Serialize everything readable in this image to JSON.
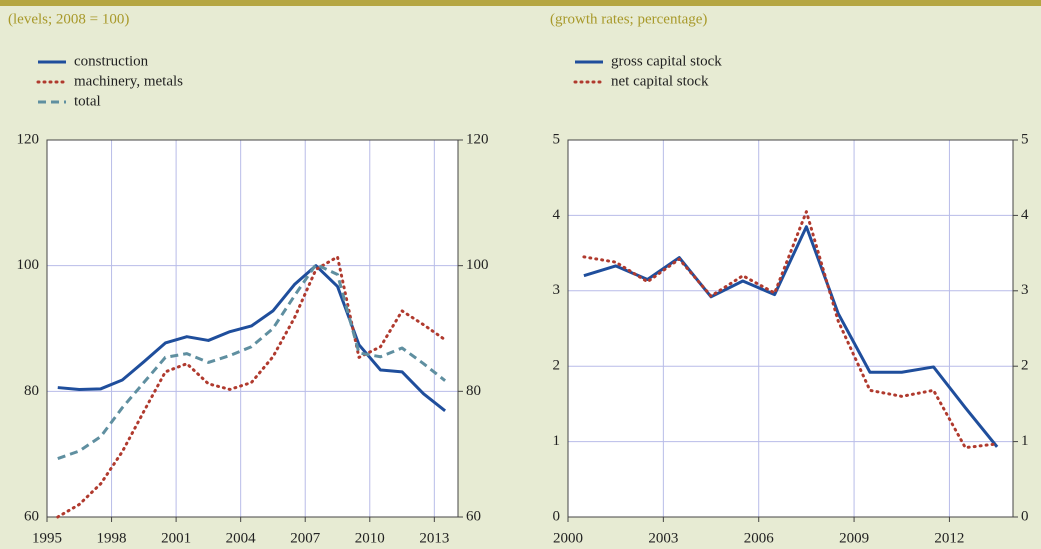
{
  "chart_data": [
    {
      "type": "line",
      "subtitle": "(levels; 2008 = 100)",
      "x": [
        1995.5,
        1996.5,
        1997.5,
        1998.5,
        1999.5,
        2000.5,
        2001.5,
        2002.5,
        2003.5,
        2004.5,
        2005.5,
        2006.5,
        2007.5,
        2008.5,
        2009.5,
        2010.5,
        2011.5,
        2012.5,
        2013.5
      ],
      "series": [
        {
          "name": "construction",
          "color": "#1f4e9c",
          "style": "solid",
          "values": [
            80.6,
            80.3,
            80.4,
            81.8,
            84.7,
            87.7,
            88.7,
            88.1,
            89.5,
            90.4,
            92.8,
            97,
            100,
            96.7,
            87.4,
            83.4,
            83.1,
            79.6,
            76.9
          ]
        },
        {
          "name": "machinery, metals",
          "color": "#b03a2e",
          "style": "dotted",
          "values": [
            60,
            62,
            65.3,
            70.4,
            76.8,
            83.1,
            84.4,
            81.2,
            80.3,
            81.4,
            85.5,
            91.7,
            99.4,
            101.4,
            85.4,
            87.1,
            92.8,
            90.6,
            88.2
          ]
        },
        {
          "name": "total",
          "color": "#5f8fa0",
          "style": "dashed",
          "values": [
            69.3,
            70.5,
            72.8,
            77.4,
            81.4,
            85.4,
            86,
            84.6,
            85.7,
            87.1,
            90,
            95.2,
            100.2,
            98.6,
            86.1,
            85.5,
            86.9,
            84.4,
            81.7
          ]
        }
      ],
      "xlim": [
        1995,
        2014.1
      ],
      "xticks": [
        1995,
        1998,
        2001,
        2004,
        2007,
        2010,
        2013
      ],
      "ylim": [
        60,
        120
      ],
      "yticks": [
        60,
        80,
        100,
        120
      ],
      "y2lim": [
        60,
        120
      ],
      "y2ticks": [
        60,
        80,
        100,
        120
      ],
      "grid": true
    },
    {
      "type": "line",
      "subtitle": "(growth rates; percentage)",
      "x": [
        2000.5,
        2001.5,
        2002.5,
        2003.5,
        2004.5,
        2005.5,
        2006.5,
        2007.5,
        2008.5,
        2009.5,
        2010.5,
        2011.5,
        2012.5,
        2013.5
      ],
      "series": [
        {
          "name": "gross capital stock",
          "color": "#1f4e9c",
          "style": "solid",
          "values": [
            3.2,
            3.33,
            3.15,
            3.44,
            2.92,
            3.13,
            2.95,
            3.85,
            2.7,
            1.92,
            1.92,
            1.99,
            1.45,
            0.93
          ]
        },
        {
          "name": "net capital stock",
          "color": "#b03a2e",
          "style": "dotted",
          "values": [
            3.45,
            3.38,
            3.12,
            3.42,
            2.93,
            3.2,
            2.97,
            4.05,
            2.6,
            1.68,
            1.6,
            1.68,
            0.92,
            0.97
          ]
        }
      ],
      "xlim": [
        2000,
        2014
      ],
      "xticks": [
        2000,
        2003,
        2006,
        2009,
        2012
      ],
      "ylim": [
        0,
        5
      ],
      "yticks": [
        0,
        1,
        2,
        3,
        4,
        5
      ],
      "y2lim": [
        0,
        5
      ],
      "y2ticks": [
        0,
        1,
        2,
        3,
        4,
        5
      ],
      "grid": true
    }
  ]
}
